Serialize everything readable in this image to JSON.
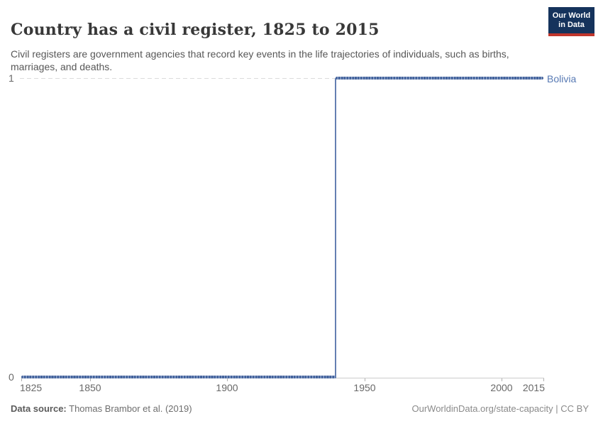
{
  "header": {
    "title": "Country has a civil register, 1825 to 2015",
    "subtitle": "Civil registers are government agencies that record key events in the life trajectories of individuals, such as births, marriages, and deaths.",
    "logo_line1": "Our World",
    "logo_line2": "in Data"
  },
  "chart_data": {
    "type": "line",
    "title": "Country has a civil register, 1825 to 2015",
    "xlabel": "",
    "ylabel": "",
    "x_range": [
      1825,
      2015
    ],
    "ylim": [
      0,
      1
    ],
    "x_tick_labels": [
      "1825",
      "1850",
      "1900",
      "1950",
      "2000",
      "2015"
    ],
    "y_tick_labels": [
      "0",
      "1"
    ],
    "grid": "dashed horizontal gridline at y=1 only; solid gray x-axis at y=0",
    "legend_position": "inline label at right end of line",
    "series": [
      {
        "name": "Bolivia",
        "color": "#44639c",
        "style": "step line with one square marker per year",
        "points_compact": [
          {
            "year": 1825,
            "value": 0
          },
          {
            "year": 1939,
            "value": 0
          },
          {
            "year": 1940,
            "value": 1
          },
          {
            "year": 2015,
            "value": 1
          }
        ],
        "description": "value 0 every year 1825-1939, value 1 every year 1940-2015"
      }
    ]
  },
  "axis": {
    "y_labels": [
      "1",
      "0"
    ],
    "x_labels": [
      "1825",
      "1850",
      "1900",
      "1950",
      "2000",
      "2015"
    ]
  },
  "series_label": "Bolivia",
  "footer": {
    "datasource_label": "Data source:",
    "datasource_value": " Thomas Brambor et al. (2019)",
    "credit": "OurWorldinData.org/state-capacity | CC BY"
  },
  "colors": {
    "series_blue": "#44639c",
    "entity_label_blue": "#587ab4",
    "logo_navy": "#15335c",
    "logo_red": "#c0362c",
    "grid_gray": "#dcdcdc",
    "axis_gray": "#cccccc",
    "text_gray": "#686868"
  }
}
